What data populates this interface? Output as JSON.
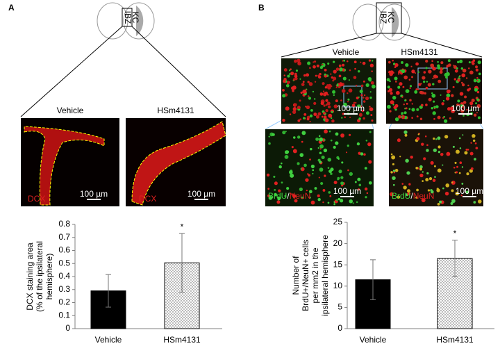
{
  "panels": [
    {
      "label": "A",
      "brain": [
        "IBZ",
        "KC"
      ],
      "image_titles": [
        "Vehicle",
        "HSm4131"
      ],
      "stain": [
        "DCX",
        "DCX"
      ],
      "scale_bars": [
        "100 µm",
        "100 µm"
      ]
    },
    {
      "label": "B",
      "brain": [
        "IBZ",
        "KC"
      ],
      "image_titles": [
        "Vehicle",
        "HSm4131"
      ],
      "scale_bars": [
        "100 µm",
        "100 µm",
        "100 µm",
        "100 µm"
      ],
      "stain_labels": [
        [
          "BrdU",
          "/",
          "NeuN"
        ],
        [
          "BrdU",
          "/",
          "NeuN"
        ]
      ]
    }
  ],
  "chart_data": [
    {
      "type": "bar",
      "y_label": [
        "DCX staining area",
        "(% of the ipsilateral",
        "hemisphere)"
      ],
      "categories": [
        "Vehicle",
        "HSm4131"
      ],
      "values": [
        0.29,
        0.505
      ],
      "errors": [
        0.125,
        0.225
      ],
      "fills": [
        "#000000",
        "dots"
      ],
      "annotations": [
        null,
        "*"
      ],
      "ylim": [
        0,
        0.8
      ],
      "yticks": [
        0,
        0.1,
        0.2,
        0.3,
        0.4,
        0.5,
        0.6,
        0.7,
        0.8
      ]
    },
    {
      "type": "bar",
      "y_label": [
        "Number of",
        "BrdU+/NeuN+ cells",
        "per mm2 in the",
        "ipsilateral hemisphere"
      ],
      "categories": [
        "Vehicle",
        "HSm4131"
      ],
      "values": [
        11.5,
        16.5
      ],
      "errors": [
        4.7,
        4.3
      ],
      "fills": [
        "#000000",
        "dots"
      ],
      "annotations": [
        null,
        "*"
      ],
      "ylim": [
        0,
        25
      ],
      "yticks": [
        0,
        5,
        10,
        15,
        20,
        25
      ]
    }
  ]
}
